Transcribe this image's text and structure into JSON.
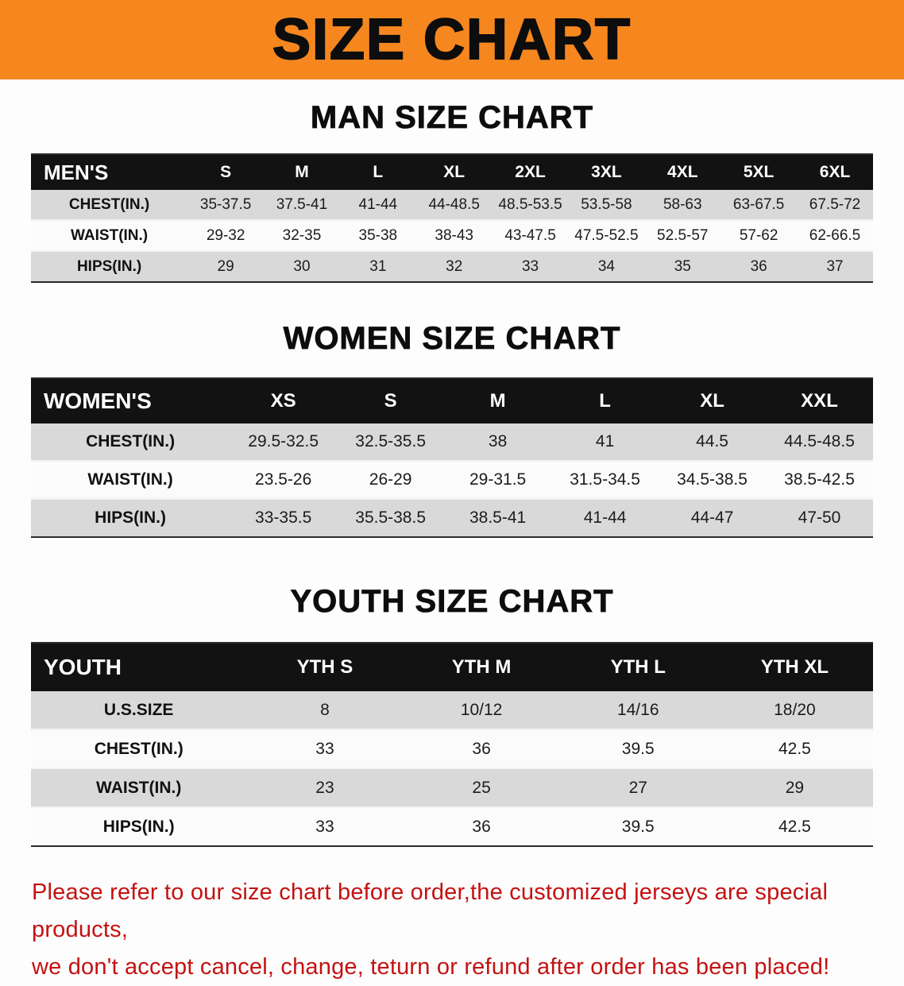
{
  "banner": {
    "title": "SIZE CHART"
  },
  "men": {
    "heading": "MAN SIZE CHART",
    "table": {
      "header_label": "MEN'S",
      "columns": [
        "S",
        "M",
        "L",
        "XL",
        "2XL",
        "3XL",
        "4XL",
        "5XL",
        "6XL"
      ],
      "rows": [
        {
          "label": "CHEST(IN.)",
          "values": [
            "35-37.5",
            "37.5-41",
            "41-44",
            "44-48.5",
            "48.5-53.5",
            "53.5-58",
            "58-63",
            "63-67.5",
            "67.5-72"
          ]
        },
        {
          "label": "WAIST(IN.)",
          "values": [
            "29-32",
            "32-35",
            "35-38",
            "38-43",
            "43-47.5",
            "47.5-52.5",
            "52.5-57",
            "57-62",
            "62-66.5"
          ]
        },
        {
          "label": "HIPS(IN.)",
          "values": [
            "29",
            "30",
            "31",
            "32",
            "33",
            "34",
            "35",
            "36",
            "37"
          ]
        }
      ]
    }
  },
  "women": {
    "heading": "WOMEN SIZE CHART",
    "table": {
      "header_label": "WOMEN'S",
      "columns": [
        "XS",
        "S",
        "M",
        "L",
        "XL",
        "XXL"
      ],
      "rows": [
        {
          "label": "CHEST(IN.)",
          "values": [
            "29.5-32.5",
            "32.5-35.5",
            "38",
            "41",
            "44.5",
            "44.5-48.5"
          ]
        },
        {
          "label": "WAIST(IN.)",
          "values": [
            "23.5-26",
            "26-29",
            "29-31.5",
            "31.5-34.5",
            "34.5-38.5",
            "38.5-42.5"
          ]
        },
        {
          "label": "HIPS(IN.)",
          "values": [
            "33-35.5",
            "35.5-38.5",
            "38.5-41",
            "41-44",
            "44-47",
            "47-50"
          ]
        }
      ]
    }
  },
  "youth": {
    "heading": "YOUTH SIZE CHART",
    "table": {
      "header_label": "YOUTH",
      "columns": [
        "YTH S",
        "YTH M",
        "YTH L",
        "YTH XL"
      ],
      "rows": [
        {
          "label": "U.S.SIZE",
          "values": [
            "8",
            "10/12",
            "14/16",
            "18/20"
          ]
        },
        {
          "label": "CHEST(IN.)",
          "values": [
            "33",
            "36",
            "39.5",
            "42.5"
          ]
        },
        {
          "label": "WAIST(IN.)",
          "values": [
            "23",
            "25",
            "27",
            "29"
          ]
        },
        {
          "label": "HIPS(IN.)",
          "values": [
            "33",
            "36",
            "39.5",
            "42.5"
          ]
        }
      ]
    }
  },
  "footer": {
    "line1": "Please refer to our size chart before order,the customized jerseys are special products,",
    "line2": "we don't accept cancel, change, teturn or refund after order has been placed!"
  },
  "colors": {
    "banner_bg": "#f6871f",
    "table_header_bg": "#121212",
    "row_shade": "#d9d9d9",
    "footer_text": "#c41212"
  }
}
